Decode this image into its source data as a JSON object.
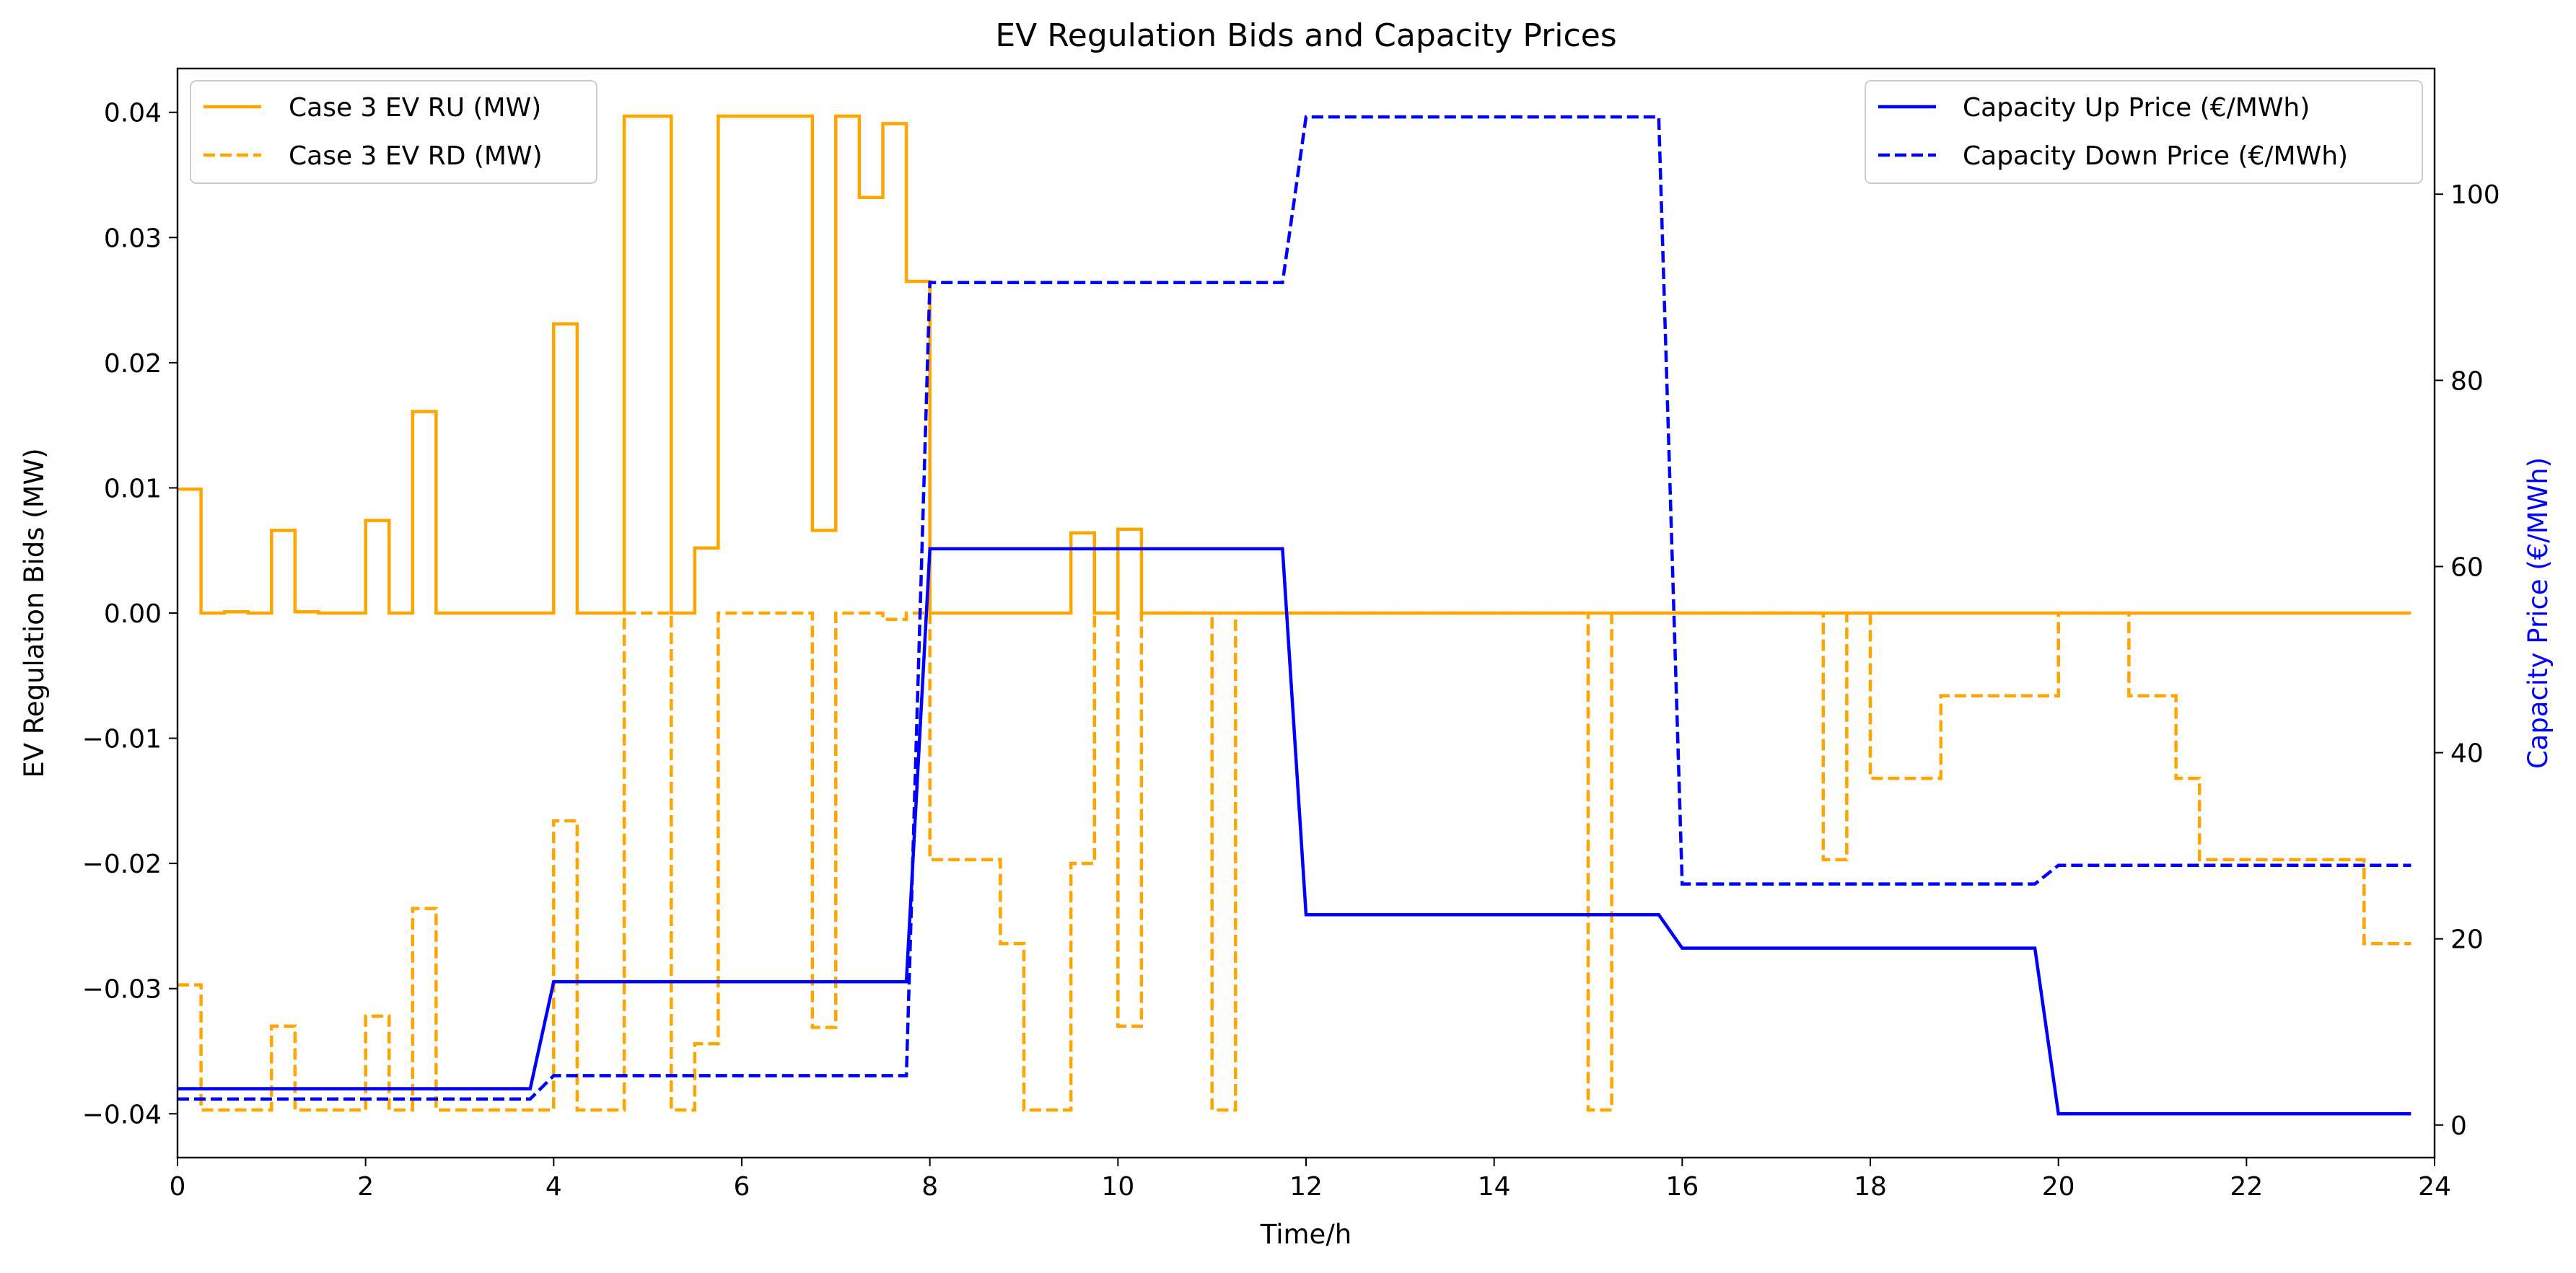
{
  "chart_data": {
    "type": "line",
    "title": "EV Regulation Bids and Capacity Prices",
    "xlabel": "Time/h",
    "ylabel_left": "EV Regulation Bids (MW)",
    "ylabel_right": "Capacity Price (€/MWh)",
    "xlim": [
      0,
      24
    ],
    "ylim_left": [
      -0.0435,
      0.0435
    ],
    "ylim_right": [
      -3.5,
      113.5
    ],
    "xticks": [
      0,
      2,
      4,
      6,
      8,
      10,
      12,
      14,
      16,
      18,
      20,
      22,
      24
    ],
    "yticks_left": [
      {
        "v": 0.04,
        "label": "0.04"
      },
      {
        "v": 0.03,
        "label": "0.03"
      },
      {
        "v": 0.02,
        "label": "0.02"
      },
      {
        "v": 0.01,
        "label": "0.01"
      },
      {
        "v": 0.0,
        "label": "0.00"
      },
      {
        "v": -0.01,
        "label": "−0.01"
      },
      {
        "v": -0.02,
        "label": "−0.02"
      },
      {
        "v": -0.03,
        "label": "−0.03"
      },
      {
        "v": -0.04,
        "label": "−0.04"
      }
    ],
    "yticks_right": [
      0,
      20,
      40,
      60,
      80,
      100
    ],
    "grid": false,
    "legend_left": "top-left",
    "legend_right": "top-right",
    "series": [
      {
        "name": "Case 3 EV RU (MW)",
        "axis": "left",
        "color": "#FFA500",
        "dash": "solid",
        "step": true,
        "x": [
          0,
          0.25,
          0.5,
          0.75,
          1,
          1.25,
          1.5,
          1.75,
          2,
          2.25,
          2.5,
          2.75,
          3,
          3.25,
          3.5,
          3.75,
          4,
          4.25,
          4.5,
          4.75,
          5,
          5.25,
          5.5,
          5.75,
          6,
          6.25,
          6.5,
          6.75,
          7,
          7.25,
          7.5,
          7.75,
          8,
          8.25,
          8.5,
          8.75,
          9,
          9.25,
          9.5,
          9.75,
          10,
          10.25,
          10.5,
          10.75,
          11,
          11.25,
          11.5,
          11.75,
          12,
          12.25,
          12.5,
          12.75,
          13,
          13.25,
          13.5,
          13.75,
          14,
          14.25,
          14.5,
          14.75,
          15,
          15.25,
          15.5,
          15.75,
          16,
          16.25,
          16.5,
          16.75,
          17,
          17.25,
          17.5,
          17.75,
          18,
          18.25,
          18.5,
          18.75,
          19,
          19.25,
          19.5,
          19.75,
          20,
          20.25,
          20.5,
          20.75,
          21,
          21.25,
          21.5,
          21.75,
          22,
          22.25,
          22.5,
          22.75,
          23,
          23.25,
          23.5,
          23.75
        ],
        "y": [
          0.0099,
          0,
          0.0001,
          0,
          0.0066,
          0.0001,
          0,
          0,
          0.0074,
          0,
          0.0161,
          0,
          0,
          0,
          0,
          0,
          0.0231,
          0,
          0,
          0.0397,
          0.0397,
          0,
          0.0052,
          0.0397,
          0.0397,
          0.0397,
          0.0397,
          0.0066,
          0.0397,
          0.0332,
          0.0391,
          0.0265,
          0,
          0,
          0,
          0,
          0,
          0,
          0.0064,
          0,
          0.0067,
          0,
          0,
          0,
          0,
          0,
          0,
          0,
          0,
          0,
          0,
          0,
          0,
          0,
          0,
          0,
          0,
          0,
          0,
          0,
          0,
          0,
          0,
          0,
          0,
          0,
          0,
          0,
          0,
          0,
          0,
          0,
          0,
          0,
          0,
          0,
          0,
          0,
          0,
          0,
          0,
          0,
          0,
          0,
          0,
          0,
          0,
          0,
          0,
          0,
          0,
          0,
          0,
          0,
          0,
          0
        ]
      },
      {
        "name": "Case 3 EV RD (MW)",
        "axis": "left",
        "color": "#FFA500",
        "dash": "dashed",
        "step": true,
        "x": [
          0,
          0.25,
          0.5,
          0.75,
          1,
          1.25,
          1.5,
          1.75,
          2,
          2.25,
          2.5,
          2.75,
          3,
          3.25,
          3.5,
          3.75,
          4,
          4.25,
          4.5,
          4.75,
          5,
          5.25,
          5.5,
          5.75,
          6,
          6.25,
          6.5,
          6.75,
          7,
          7.25,
          7.5,
          7.75,
          8,
          8.25,
          8.5,
          8.75,
          9,
          9.25,
          9.5,
          9.75,
          10,
          10.25,
          10.5,
          10.75,
          11,
          11.25,
          11.5,
          11.75,
          12,
          12.25,
          12.5,
          12.75,
          13,
          13.25,
          13.5,
          13.75,
          14,
          14.25,
          14.5,
          14.75,
          15,
          15.25,
          15.5,
          15.75,
          16,
          16.25,
          16.5,
          16.75,
          17,
          17.25,
          17.5,
          17.75,
          18,
          18.25,
          18.5,
          18.75,
          19,
          19.25,
          19.5,
          19.75,
          20,
          20.25,
          20.5,
          20.75,
          21,
          21.25,
          21.5,
          21.75,
          22,
          22.25,
          22.5,
          22.75,
          23,
          23.25,
          23.5,
          23.75
        ],
        "y": [
          -0.0297,
          -0.0397,
          -0.0397,
          -0.0397,
          -0.033,
          -0.0397,
          -0.0397,
          -0.0397,
          -0.0322,
          -0.0397,
          -0.0236,
          -0.0397,
          -0.0397,
          -0.0397,
          -0.0397,
          -0.0397,
          -0.0166,
          -0.0397,
          -0.0397,
          0,
          0,
          -0.0397,
          -0.0344,
          0,
          0,
          0,
          0,
          -0.0331,
          0,
          0,
          -0.0005,
          0,
          -0.0197,
          -0.0197,
          -0.0197,
          -0.0264,
          -0.0397,
          -0.0397,
          -0.02,
          0,
          -0.033,
          0,
          0,
          0,
          -0.0397,
          0,
          0,
          0,
          0,
          0,
          0,
          0,
          0,
          0,
          0,
          0,
          0,
          0,
          0,
          0,
          -0.0397,
          0,
          0,
          0,
          0,
          0,
          0,
          0,
          0,
          0,
          -0.0197,
          0,
          -0.0132,
          -0.0132,
          -0.0132,
          -0.0066,
          -0.0066,
          -0.0066,
          -0.0066,
          -0.0066,
          0,
          0,
          0,
          -0.0066,
          -0.0066,
          -0.0132,
          -0.0197,
          -0.0197,
          -0.0197,
          -0.0197,
          -0.0197,
          -0.0197,
          -0.0197,
          -0.0264,
          -0.0264,
          -0.0264
        ]
      },
      {
        "name": "Capacity Up Price (€/MWh)",
        "axis": "right",
        "color": "#0000FF",
        "dash": "solid",
        "step": false,
        "x": [
          0,
          3.75,
          4,
          7.75,
          8,
          11.75,
          12,
          15.75,
          16,
          19.75,
          20,
          23.75
        ],
        "y": [
          3.9,
          3.9,
          15.4,
          15.4,
          61.9,
          61.9,
          22.6,
          22.6,
          19.0,
          19.0,
          1.2,
          1.2
        ]
      },
      {
        "name": "Capacity Down Price (€/MWh)",
        "axis": "right",
        "color": "#0000FF",
        "dash": "dashed",
        "step": false,
        "x": [
          0,
          3.75,
          4,
          7.75,
          8,
          11.75,
          12,
          15.75,
          16,
          19.75,
          20,
          23.75
        ],
        "y": [
          2.8,
          2.8,
          5.3,
          5.3,
          90.5,
          90.5,
          108.3,
          108.3,
          25.9,
          25.9,
          27.9,
          27.9
        ]
      }
    ]
  }
}
